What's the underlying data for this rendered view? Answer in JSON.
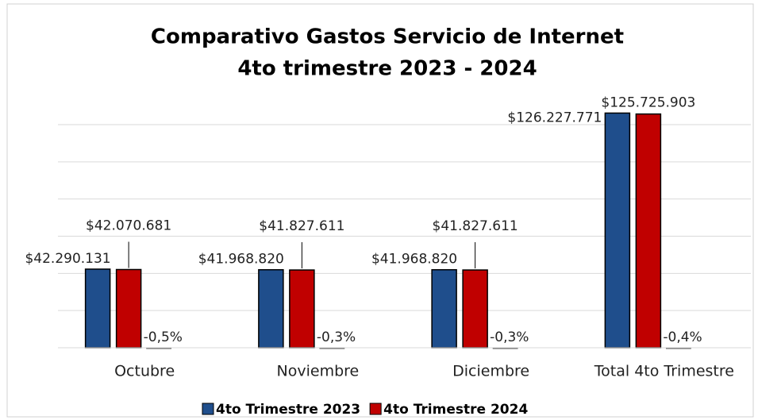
{
  "chart_data": {
    "type": "bar",
    "title": "Comparativo Gastos  Servicio de Internet",
    "subtitle": "4to trimestre 2023 - 2024",
    "categories": [
      "Octubre",
      "Noviembre",
      "Diciembre",
      "Total 4to Trimestre"
    ],
    "series": [
      {
        "name": "4to  Trimestre 2023",
        "color": "#1f4e8c",
        "values": [
          42290131,
          41968820,
          41968820,
          126227771
        ],
        "value_labels": [
          "$42.290.131",
          "$41.968.820",
          "$41.968.820",
          "$126.227.771"
        ]
      },
      {
        "name": "4to Trimestre 2024",
        "color": "#c00000",
        "values": [
          42070681,
          41827611,
          41827611,
          125725903
        ],
        "value_labels": [
          "$42.070.681",
          "$41.827.611",
          "$41.827.611",
          "$125.725.903"
        ]
      },
      {
        "color": "#7f7f7f",
        "values": [
          -0.5,
          -0.3,
          -0.3,
          -0.4
        ],
        "value_labels": [
          "-0,5%",
          "-0,3%",
          "-0,3%",
          "-0,4%"
        ]
      }
    ],
    "ylim": [
      0,
      130000000
    ],
    "yticks": [
      0,
      20000000,
      40000000,
      60000000,
      80000000,
      100000000,
      120000000
    ],
    "grid": true,
    "legend": "bottom"
  }
}
